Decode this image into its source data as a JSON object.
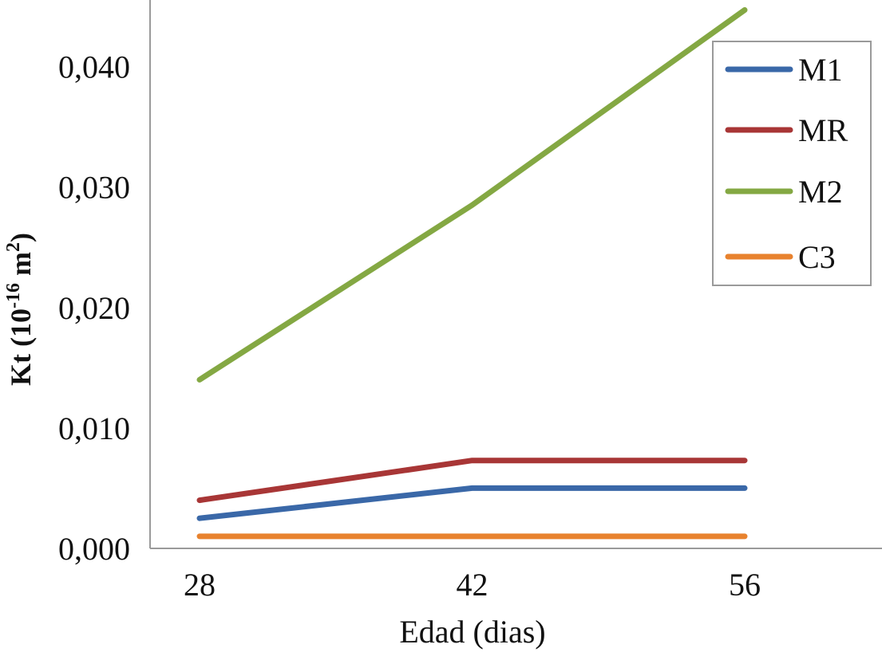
{
  "chart_data": {
    "type": "line",
    "title": "",
    "xlabel": "Edad (dias)",
    "ylabel": {
      "base": "Kt (10",
      "exp1": "-16",
      "mid": " m",
      "exp2": "2",
      "end": ")"
    },
    "categories": [
      "28",
      "42",
      "56"
    ],
    "x": [
      28,
      42,
      56
    ],
    "ylim": [
      0,
      0.045
    ],
    "yticks": [
      {
        "value": 0.0,
        "label": "0,000"
      },
      {
        "value": 0.01,
        "label": "0,010"
      },
      {
        "value": 0.02,
        "label": "0,020"
      },
      {
        "value": 0.03,
        "label": "0,030"
      },
      {
        "value": 0.04,
        "label": "0,040"
      }
    ],
    "grid": false,
    "legend_position": "top-right",
    "series": [
      {
        "name": "M1",
        "color": "#3a68a8",
        "values": [
          0.0025,
          0.005,
          0.005
        ]
      },
      {
        "name": "MR",
        "color": "#a83636",
        "values": [
          0.004,
          0.0073,
          0.0073
        ]
      },
      {
        "name": "M2",
        "color": "#84a843",
        "values": [
          0.014,
          0.0285,
          0.0447
        ]
      },
      {
        "name": "C3",
        "color": "#e8822e",
        "values": [
          0.001,
          0.001,
          0.001
        ]
      }
    ]
  }
}
